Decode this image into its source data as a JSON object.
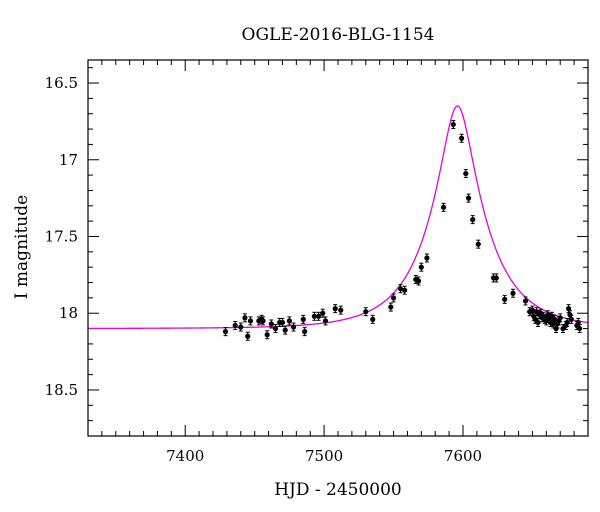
{
  "chart_data": {
    "type": "scatter",
    "title": "OGLE-2016-BLG-1154",
    "xlabel": "HJD - 2450000",
    "ylabel": "I magnitude",
    "xlim": [
      7330,
      7690
    ],
    "ylim": [
      18.8,
      16.35
    ],
    "y_inverted": true,
    "xticks": [
      7400,
      7500,
      7600
    ],
    "xtick_labels": [
      "7400",
      "7500",
      "7600"
    ],
    "yticks": [
      16.5,
      17,
      17.5,
      18,
      18.5
    ],
    "ytick_labels": [
      "16.5",
      "17",
      "17.5",
      "18",
      "18.5"
    ],
    "grid": false,
    "legend": "none",
    "colors": {
      "data": "#000000",
      "model": "#e600e6"
    },
    "model": {
      "description_free": true,
      "t0": 7596,
      "u0": 0.27,
      "tE": 40,
      "I_base": 18.1
    },
    "series": [
      {
        "x": [
          7429,
          7436,
          7440,
          7443,
          7445,
          7447,
          7453,
          7455,
          7456,
          7459,
          7462,
          7465,
          7468,
          7470,
          7472,
          7475,
          7478,
          7485,
          7486,
          7493,
          7496,
          7499,
          7501,
          7508,
          7512,
          7530,
          7535,
          7548,
          7550,
          7555,
          7558,
          7566,
          7568,
          7570,
          7574,
          7586,
          7593,
          7599,
          7602,
          7604,
          7607,
          7611,
          7622,
          7624,
          7630,
          7636,
          7645,
          7648,
          7650,
          7651,
          7652,
          7653,
          7654,
          7655,
          7656,
          7657,
          7658,
          7659,
          7660,
          7661,
          7662,
          7663,
          7664,
          7665,
          7666,
          7667,
          7668,
          7669,
          7670,
          7672,
          7674,
          7675,
          7676,
          7677,
          7678,
          7682,
          7683,
          7684
        ],
        "y": [
          18.12,
          18.08,
          18.09,
          18.03,
          18.15,
          18.05,
          18.05,
          18.04,
          18.05,
          18.14,
          18.07,
          18.1,
          18.06,
          18.06,
          18.11,
          18.05,
          18.09,
          18.04,
          18.12,
          18.02,
          18.02,
          18.0,
          18.05,
          17.97,
          17.98,
          17.99,
          18.04,
          17.96,
          17.9,
          17.84,
          17.85,
          17.78,
          17.79,
          17.7,
          17.64,
          17.31,
          16.77,
          16.86,
          17.09,
          17.25,
          17.39,
          17.55,
          17.77,
          17.77,
          17.91,
          17.87,
          17.92,
          17.99,
          17.98,
          18.02,
          18.04,
          17.99,
          18.06,
          18.01,
          18.0,
          18.03,
          18.02,
          18.04,
          18.05,
          18.01,
          18.03,
          18.06,
          18.02,
          18.07,
          18.04,
          18.1,
          18.07,
          18.05,
          18.03,
          18.1,
          18.08,
          18.06,
          17.97,
          18.01,
          18.04,
          18.08,
          18.06,
          18.1
        ]
      }
    ]
  }
}
